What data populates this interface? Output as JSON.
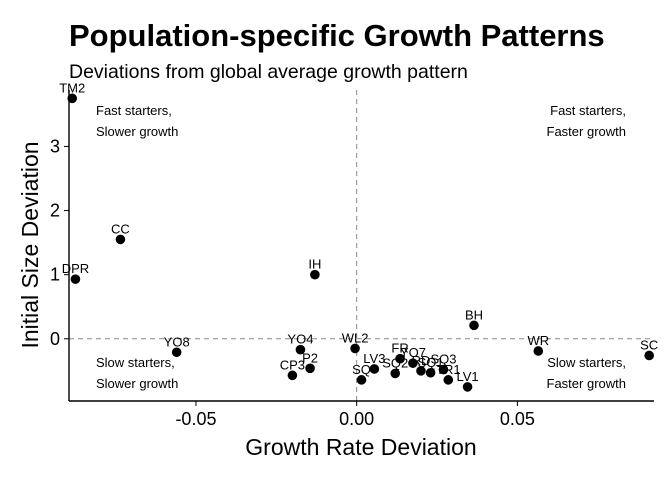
{
  "chart_data": {
    "type": "scatter",
    "title": "Population-specific Growth Patterns",
    "subtitle": "Deviations from global average growth pattern",
    "xlabel": "Growth Rate Deviation",
    "ylabel": "Initial Size Deviation",
    "xlim": [
      -0.0895,
      0.0925
    ],
    "ylim": [
      -0.97,
      3.88
    ],
    "x_ticks": [
      -0.05,
      0.0,
      0.05
    ],
    "x_tick_labels": [
      "-0.05",
      "0.00",
      "0.05"
    ],
    "y_ticks": [
      0,
      1,
      2,
      3
    ],
    "y_tick_labels": [
      "0",
      "1",
      "2",
      "3"
    ],
    "grid": false,
    "reference_lines": {
      "x": 0,
      "y": 0,
      "style": "dashed"
    },
    "points": [
      {
        "label": "TM2",
        "x": -0.0885,
        "y": 3.75
      },
      {
        "label": "CC",
        "x": -0.0735,
        "y": 1.55
      },
      {
        "label": "DPR",
        "x": -0.0875,
        "y": 0.93
      },
      {
        "label": "IH",
        "x": -0.013,
        "y": 1.0
      },
      {
        "label": "YO8",
        "x": -0.056,
        "y": -0.21
      },
      {
        "label": "YO4",
        "x": -0.0175,
        "y": -0.17
      },
      {
        "label": "P2",
        "x": -0.0145,
        "y": -0.46
      },
      {
        "label": "CP3",
        "x": -0.02,
        "y": -0.57
      },
      {
        "label": "WL2",
        "x": -0.0005,
        "y": -0.15
      },
      {
        "label": "SQ",
        "x": 0.0015,
        "y": -0.64
      },
      {
        "label": "LV3",
        "x": 0.0055,
        "y": -0.47
      },
      {
        "label": "SQ2",
        "x": 0.012,
        "y": -0.54
      },
      {
        "label": "FR",
        "x": 0.0135,
        "y": -0.31
      },
      {
        "label": "YO7",
        "x": 0.0175,
        "y": -0.38
      },
      {
        "label": "RD",
        "x": 0.02,
        "y": -0.5
      },
      {
        "label": "SQ1",
        "x": 0.023,
        "y": -0.53
      },
      {
        "label": "SQ3",
        "x": 0.027,
        "y": -0.48
      },
      {
        "label": "TR1",
        "x": 0.0285,
        "y": -0.64
      },
      {
        "label": "LV1",
        "x": 0.0345,
        "y": -0.75
      },
      {
        "label": "BH",
        "x": 0.0365,
        "y": 0.21
      },
      {
        "label": "WR",
        "x": 0.0565,
        "y": -0.19
      },
      {
        "label": "SC",
        "x": 0.091,
        "y": -0.26
      }
    ],
    "quadrant_labels": {
      "top_left": [
        "Fast starters,",
        "Slower growth"
      ],
      "top_right": [
        "Fast starters,",
        "Faster growth"
      ],
      "bottom_left": [
        "Slow starters,",
        "Slower growth"
      ],
      "bottom_right": [
        "Slow starters,",
        "Faster growth"
      ]
    }
  }
}
